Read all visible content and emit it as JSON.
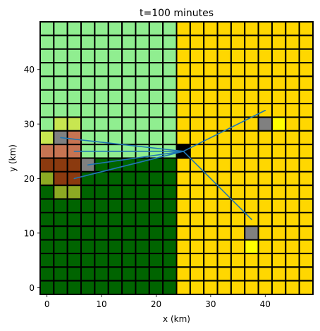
{
  "chart_data": {
    "type": "heatmap",
    "title": "t=100 minutes",
    "xlabel": "x (km)",
    "ylabel": "y (km)",
    "xlim": [
      -1.25,
      48.75
    ],
    "ylim": [
      -1.25,
      48.75
    ],
    "x_ticks": [
      0,
      10,
      20,
      30,
      40
    ],
    "y_ticks": [
      0,
      10,
      20,
      30,
      40
    ],
    "cell_size_km": 2.5,
    "grid_cols": 20,
    "grid_rows": 20,
    "cell_border_color": "#000000",
    "palette": {
      "L": "#90ee90",
      "D": "#006400",
      "Y": "#ffd700",
      "S": "#c8e650",
      "O": "#8caa23",
      "B": "#c77452",
      "R": "#8b3a0f",
      "G": "#808080",
      "K": "#000000",
      "W": "#ffff00"
    },
    "rows_top_to_bottom": [
      "LLLLLLLLLLYYYYYYYYYY",
      "LLLLLLLLLLYYYYYYYYYY",
      "LLLLLLLLLLYYYYYYYYYY",
      "LLLLLLLLLLYYYYYYYYYY",
      "LLLLLLLLLLYYYYYYYYYY",
      "LLLLLLLLLLYYYYYYYYYY",
      "LLLLLLLLLLYYYYYYYYYY",
      "LSSLLLLLLLYYYYYYGWYY",
      "SGBLLLLLLLYYYYYYYYYY",
      "BBBLLLLLLLKYYYYYYYYY",
      "RRRGDDDDDDYYYYYYYYYY",
      "ORRDDDDDDDYYYYYYYYYY",
      "DOODDDDDDDYYYYYYYYYY",
      "DDDDDDDDDDYYYYYYYYYY",
      "DDDDDDDDDDYYYYYYYYYY",
      "DDDDDDDDDDYYYYYGYYYY",
      "DDDDDDDDDDYYYYYWYYYY",
      "DDDDDDDDDDYYYYYYYYYY",
      "DDDDDDDDDDYYYYYYYYYY",
      "DDDDDDDDDDYYYYYYYYYY"
    ],
    "lines_color": "#1f77b4",
    "lines": [
      {
        "from": [
          25,
          25
        ],
        "to": [
          2.5,
          27.5
        ]
      },
      {
        "from": [
          25,
          25
        ],
        "to": [
          5,
          25
        ]
      },
      {
        "from": [
          25,
          25
        ],
        "to": [
          7.5,
          22.5
        ]
      },
      {
        "from": [
          25,
          25
        ],
        "to": [
          5,
          20
        ]
      },
      {
        "from": [
          25,
          25
        ],
        "to": [
          40,
          32.5
        ]
      },
      {
        "from": [
          25,
          25
        ],
        "to": [
          37.5,
          12.5
        ]
      }
    ]
  }
}
